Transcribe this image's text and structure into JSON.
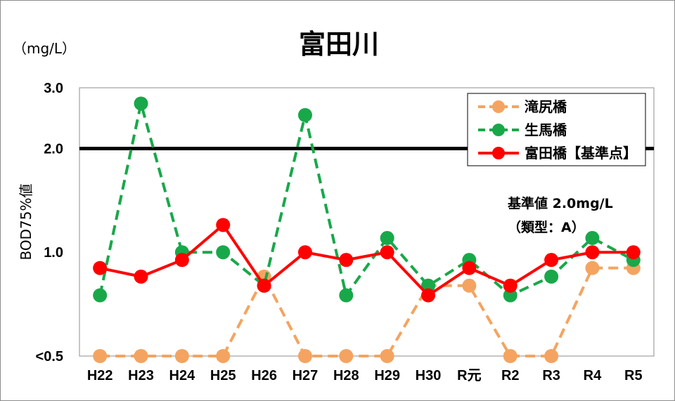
{
  "chart_data": {
    "type": "line",
    "title": "富田川",
    "unit_label": "（mg/L）",
    "ylabel": "BOD75%値",
    "categories": [
      "H22",
      "H23",
      "H24",
      "H25",
      "H26",
      "H27",
      "H28",
      "H29",
      "H30",
      "R元",
      "R2",
      "R3",
      "R4",
      "R5"
    ],
    "y_tick_labels": [
      "<0.5",
      "1.0",
      "2.0",
      "3.0"
    ],
    "y_tick_values": [
      0.5,
      1.0,
      2.0,
      3.0
    ],
    "ylim": [
      0.5,
      3.0
    ],
    "y_scale": "log",
    "grid": false,
    "legend_position": "top-right",
    "series": [
      {
        "name": "滝尻橋",
        "color": "#f4a460",
        "dash": true,
        "values": [
          0.5,
          0.5,
          0.5,
          0.5,
          0.85,
          0.5,
          0.5,
          0.5,
          0.8,
          0.8,
          0.5,
          0.5,
          0.9,
          0.9
        ]
      },
      {
        "name": "生馬橋",
        "color": "#18a84a",
        "dash": true,
        "values": [
          0.75,
          2.7,
          1.0,
          1.0,
          0.8,
          2.5,
          0.75,
          1.1,
          0.8,
          0.95,
          0.75,
          0.85,
          1.1,
          0.95
        ]
      },
      {
        "name": "富田橋【基準点】",
        "color": "#ff0000",
        "dash": false,
        "values": [
          0.9,
          0.85,
          0.95,
          1.2,
          0.8,
          1.0,
          0.95,
          1.0,
          0.75,
          0.9,
          0.8,
          0.95,
          1.0,
          1.0
        ]
      }
    ],
    "reference_line": {
      "value": 2.0,
      "color": "#000000"
    },
    "annotation": [
      "基準値 2.0mg/L",
      "（類型：A）"
    ]
  }
}
